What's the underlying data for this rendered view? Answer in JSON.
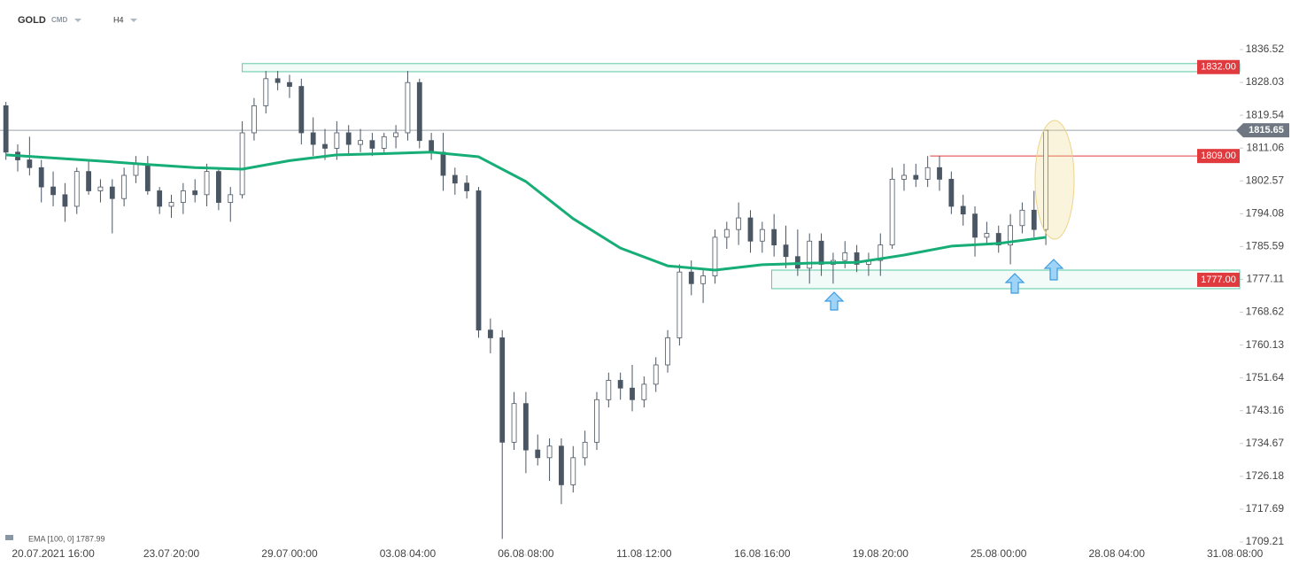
{
  "chart_data": {
    "type": "candlestick",
    "symbol": "GOLD",
    "market": "CMD",
    "timeframe": "H4",
    "indicator_label": "EMA [100, 0] 1787.99",
    "xlim": [
      -4.5,
      100.4
    ],
    "ylim": [
      1706.23,
      1840.18
    ],
    "xticks": [
      {
        "value": 0,
        "label": "20.07.2021  16:00"
      },
      {
        "value": 10,
        "label": "23.07  20:00"
      },
      {
        "value": 20,
        "label": "29.07  00:00"
      },
      {
        "value": 30,
        "label": "03.08  04:00"
      },
      {
        "value": 40,
        "label": "06.08  08:00"
      },
      {
        "value": 50,
        "label": "11.08  12:00"
      },
      {
        "value": 60,
        "label": "16.08  16:00"
      },
      {
        "value": 70,
        "label": "19.08  20:00"
      },
      {
        "value": 80,
        "label": "25.08  00:00"
      },
      {
        "value": 90,
        "label": "28.08  04:00"
      },
      {
        "value": 100,
        "label": "31.08  08:00"
      }
    ],
    "yticks": [
      1836.52,
      1828.03,
      1819.54,
      1811.06,
      1802.57,
      1794.08,
      1785.59,
      1777.11,
      1768.62,
      1760.13,
      1751.64,
      1743.16,
      1734.67,
      1726.18,
      1717.69,
      1709.21
    ],
    "up_color": "#ffffff",
    "down_color": "#4a5663",
    "wick_color": "#4a5663",
    "x": [
      -4,
      -3,
      -2,
      -1,
      0,
      1,
      2,
      3,
      4,
      5,
      6,
      7,
      8,
      9,
      10,
      11,
      12,
      13,
      14,
      15,
      16,
      17,
      18,
      19,
      20,
      21,
      22,
      23,
      24,
      25,
      26,
      27,
      28,
      29,
      30,
      31,
      32,
      33,
      34,
      35,
      36,
      37,
      38,
      39,
      40,
      41,
      42,
      43,
      44,
      45,
      46,
      47,
      48,
      49,
      50,
      51,
      52,
      53,
      54,
      55,
      56,
      57,
      58,
      59,
      60,
      61,
      62,
      63,
      64,
      65,
      66,
      67,
      68,
      69,
      70,
      71,
      72,
      73,
      74,
      75,
      76,
      77,
      78,
      79,
      80,
      81,
      82,
      83,
      84
    ],
    "ohlc": [
      [
        1822,
        1823,
        1808,
        1810
      ],
      [
        1810,
        1812,
        1805,
        1808
      ],
      [
        1808,
        1814,
        1804,
        1806
      ],
      [
        1806,
        1808,
        1797,
        1801
      ],
      [
        1801,
        1805,
        1796,
        1799
      ],
      [
        1799,
        1802,
        1792,
        1796
      ],
      [
        1796,
        1806,
        1794,
        1805
      ],
      [
        1805,
        1808,
        1799,
        1800
      ],
      [
        1800,
        1803,
        1797,
        1801
      ],
      [
        1801,
        1803,
        1789,
        1798
      ],
      [
        1798,
        1806,
        1796,
        1804
      ],
      [
        1804,
        1809,
        1802,
        1807
      ],
      [
        1807,
        1809,
        1799,
        1800
      ],
      [
        1800,
        1801,
        1794,
        1796
      ],
      [
        1796,
        1799,
        1793,
        1797
      ],
      [
        1797,
        1802,
        1794,
        1800
      ],
      [
        1800,
        1803,
        1797,
        1799
      ],
      [
        1799,
        1807,
        1796,
        1805
      ],
      [
        1805,
        1806,
        1795,
        1797
      ],
      [
        1797,
        1801,
        1792,
        1799
      ],
      [
        1799,
        1818,
        1798,
        1815
      ],
      [
        1815,
        1824,
        1813,
        1822
      ],
      [
        1822,
        1831,
        1820,
        1829
      ],
      [
        1829,
        1831,
        1826,
        1828
      ],
      [
        1828,
        1830,
        1824,
        1827
      ],
      [
        1827,
        1829,
        1812,
        1815
      ],
      [
        1815,
        1819,
        1809,
        1812
      ],
      [
        1812,
        1816,
        1808,
        1811
      ],
      [
        1811,
        1818,
        1808,
        1815
      ],
      [
        1815,
        1817,
        1809,
        1812
      ],
      [
        1812,
        1816,
        1810,
        1813
      ],
      [
        1813,
        1815,
        1809,
        1811
      ],
      [
        1811,
        1815,
        1810,
        1814
      ],
      [
        1814,
        1817,
        1811,
        1815
      ],
      [
        1815,
        1831,
        1813,
        1828
      ],
      [
        1828,
        1829,
        1811,
        1813
      ],
      [
        1813,
        1815,
        1808,
        1810
      ],
      [
        1810,
        1815,
        1800,
        1804
      ],
      [
        1804,
        1806,
        1799,
        1802
      ],
      [
        1802,
        1804,
        1798,
        1800
      ],
      [
        1800,
        1801,
        1762,
        1764
      ],
      [
        1764,
        1767,
        1758,
        1762
      ],
      [
        1762,
        1764,
        1710,
        1735
      ],
      [
        1735,
        1748,
        1733,
        1745
      ],
      [
        1745,
        1748,
        1727,
        1733
      ],
      [
        1733,
        1737,
        1729,
        1731
      ],
      [
        1731,
        1736,
        1725,
        1734
      ],
      [
        1734,
        1736,
        1719,
        1724
      ],
      [
        1724,
        1734,
        1722,
        1731
      ],
      [
        1731,
        1738,
        1729,
        1735
      ],
      [
        1735,
        1748,
        1733,
        1746
      ],
      [
        1746,
        1753,
        1744,
        1751
      ],
      [
        1751,
        1753,
        1746,
        1749
      ],
      [
        1749,
        1755,
        1743,
        1746
      ],
      [
        1746,
        1752,
        1744,
        1750
      ],
      [
        1750,
        1757,
        1748,
        1755
      ],
      [
        1755,
        1764,
        1753,
        1762
      ],
      [
        1762,
        1781,
        1760,
        1779
      ],
      [
        1779,
        1782,
        1773,
        1776
      ],
      [
        1776,
        1780,
        1771,
        1778
      ],
      [
        1778,
        1790,
        1776,
        1788
      ],
      [
        1788,
        1792,
        1785,
        1790
      ],
      [
        1790,
        1797,
        1786,
        1793
      ],
      [
        1793,
        1795,
        1784,
        1787
      ],
      [
        1787,
        1792,
        1784,
        1790
      ],
      [
        1790,
        1794,
        1783,
        1786
      ],
      [
        1786,
        1791,
        1780,
        1783
      ],
      [
        1783,
        1790,
        1778,
        1780
      ],
      [
        1780,
        1789,
        1776,
        1787
      ],
      [
        1787,
        1789,
        1778,
        1781
      ],
      [
        1781,
        1784,
        1776,
        1782
      ],
      [
        1782,
        1787,
        1780,
        1784
      ],
      [
        1784,
        1786,
        1779,
        1781
      ],
      [
        1781,
        1784,
        1778,
        1782
      ],
      [
        1782,
        1789,
        1778,
        1786
      ],
      [
        1786,
        1806,
        1785,
        1803
      ],
      [
        1803,
        1807,
        1800,
        1804
      ],
      [
        1804,
        1807,
        1801,
        1803
      ],
      [
        1803,
        1809,
        1801,
        1806
      ],
      [
        1806,
        1809,
        1800,
        1803
      ],
      [
        1803,
        1805,
        1794,
        1796
      ],
      [
        1796,
        1799,
        1791,
        1794
      ],
      [
        1794,
        1796,
        1783,
        1788
      ],
      [
        1788,
        1792,
        1786,
        1789
      ],
      [
        1789,
        1791,
        1784,
        1786
      ],
      [
        1786,
        1794,
        1781,
        1791
      ],
      [
        1791,
        1797,
        1789,
        1795
      ],
      [
        1795,
        1800,
        1788,
        1790
      ],
      [
        1790,
        1815.65,
        1786,
        1815.65
      ]
    ],
    "ema": {
      "color": "#17ad76",
      "x": [
        -4,
        0,
        4,
        8,
        12,
        16,
        20,
        24,
        28,
        32,
        36,
        40,
        44,
        48,
        52,
        56,
        60,
        64,
        68,
        72,
        76,
        80,
        84
      ],
      "values": [
        1809.3,
        1808.5,
        1807.7,
        1806.8,
        1806,
        1805.6,
        1807.8,
        1809.3,
        1809.6,
        1810,
        1808.8,
        1802.4,
        1792.8,
        1785.2,
        1780.6,
        1779.5,
        1780.9,
        1781.3,
        1781.5,
        1783.4,
        1785.7,
        1786.4,
        1787.99
      ]
    },
    "zones": [
      {
        "level": {
          "value": 1832,
          "label": "1832.00"
        },
        "low": 1830.8,
        "high": 1832.9,
        "from": 16,
        "color": "#e03a3e"
      },
      {
        "level": {
          "value": 1777,
          "label": "1777.00"
        },
        "low": 1774.7,
        "high": 1779.5,
        "from": 60.8,
        "color": "#e03a3e"
      }
    ],
    "lines": [
      {
        "level": {
          "value": 1809,
          "label": "1809.00"
        },
        "from": 74.2,
        "color": "#e03a3e"
      }
    ],
    "last_price": 1815.65
  }
}
